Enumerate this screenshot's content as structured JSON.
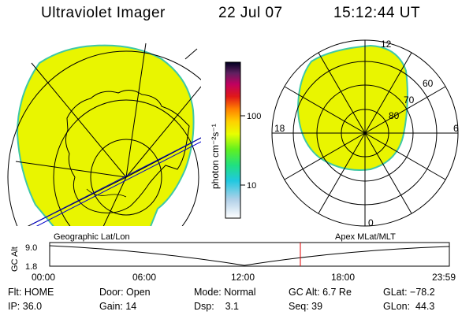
{
  "header": {
    "title": "Ultraviolet Imager",
    "date": "22 Jul 07",
    "time": "15:12:44 UT"
  },
  "colorbar": {
    "unit_label": "photon cm⁻²s⁻¹",
    "ticks": [
      "100",
      "10"
    ]
  },
  "polar_plot": {
    "mlt_labels": [
      "12",
      "18",
      "6",
      "0"
    ],
    "lat_labels": [
      "60",
      "70",
      "80"
    ]
  },
  "timeline": {
    "left_label": "Geographic Lat/Lon",
    "right_label": "Apex MLat/MLT",
    "y_axis_label": "GC Alt",
    "y_ticks": [
      "9.0",
      "1.8"
    ],
    "x_ticks": [
      "00:00",
      "06:00",
      "12:00",
      "18:00",
      "23:59"
    ],
    "current_time_marker": "15:12"
  },
  "status": {
    "flt": "Flt: HOME",
    "ip": "IP: 36.0",
    "door": "Door: Open",
    "gain": "Gain: 14",
    "mode": "Mode: Normal",
    "dsp": "Dsp:    3.1",
    "gc_alt": "GC Alt: 6.7 Re",
    "seq": "Seq: 39",
    "glat": "GLat: −78.2",
    "glon": "GLon:  44.3"
  },
  "colors": {
    "aurora_fill": "#e9f500",
    "aurora_edge": "#3ec8a6",
    "background": "#ffffff"
  }
}
